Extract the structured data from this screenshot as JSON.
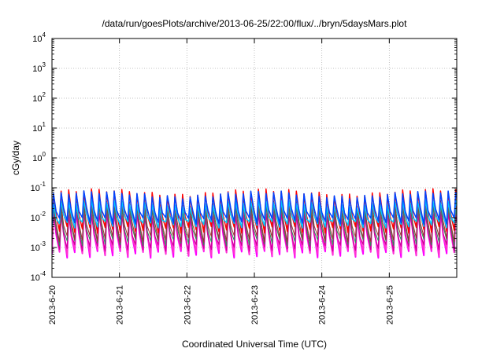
{
  "chart_data": {
    "type": "line",
    "title": "/data/run/goesPlots/archive/2013-06-25/22:00/flux/../bryn/5daysMars.plot",
    "xlabel": "Coordinated Universal Time (UTC)",
    "ylabel": "cGy/day",
    "y_scale": "log",
    "ylim": [
      0.0001,
      10000
    ],
    "xlim": [
      "2013-06-20 00:00",
      "2013-06-26 00:00"
    ],
    "grid": true,
    "legend": "none",
    "x_ticks": [
      "2013-6-20",
      "2013-6-21",
      "2013-6-22",
      "2013-6-23",
      "2013-6-24",
      "2013-6-25"
    ],
    "y_ticks": [
      {
        "value": 0.0001,
        "base": "10",
        "exp": "-4"
      },
      {
        "value": 0.001,
        "base": "10",
        "exp": "-3"
      },
      {
        "value": 0.01,
        "base": "10",
        "exp": "-2"
      },
      {
        "value": 0.1,
        "base": "10",
        "exp": "-1"
      },
      {
        "value": 1,
        "base": "10",
        "exp": "0"
      },
      {
        "value": 10,
        "base": "10",
        "exp": "1"
      },
      {
        "value": 100,
        "base": "10",
        "exp": "2"
      },
      {
        "value": 1000,
        "base": "10",
        "exp": "3"
      },
      {
        "value": 10000,
        "base": "10",
        "exp": "4"
      }
    ],
    "periodic_pattern": {
      "start": "2013-06-20 00:00",
      "end": "2013-06-26 00:00",
      "period_hours": 2.7,
      "rise_fraction": 0.2,
      "peak_drift_amplitude": 0.2,
      "peak_drift_period_hours": 60
    },
    "series": [
      {
        "color": "#ff00ff",
        "peak": 0.02,
        "trough": 0.0006,
        "width": 2.0
      },
      {
        "color": "#ff33cc",
        "peak": 0.018,
        "trough": 0.0007,
        "width": 1.5
      },
      {
        "color": "#cc0099",
        "peak": 0.012,
        "trough": 0.001,
        "width": 1.2
      },
      {
        "color": "#2e8b57",
        "peak": 0.02,
        "trough": 0.0015,
        "width": 1.0
      },
      {
        "color": "#9b2f2f",
        "peak": 0.03,
        "trough": 0.002,
        "width": 1.0
      },
      {
        "color": "#ff0000",
        "peak": 0.07,
        "trough": 0.004,
        "width": 1.5
      },
      {
        "color": "#00c8ff",
        "peak": 0.03,
        "trough": 0.006,
        "width": 1.5
      },
      {
        "color": "#0044ff",
        "peak": 0.06,
        "trough": 0.008,
        "width": 1.5
      }
    ]
  }
}
